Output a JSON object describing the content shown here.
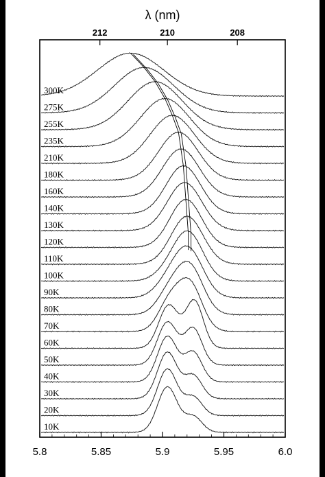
{
  "chart_data": {
    "type": "line",
    "title": "",
    "xlabel": "",
    "ylabel": "",
    "top_xlabel": "λ (nm)",
    "xlim": [
      5.8,
      6.0
    ],
    "x_ticks": [
      "5.8",
      "5.85",
      "5.9",
      "5.95",
      "6.0"
    ],
    "top_x_ticks": [
      {
        "label": "212",
        "x": 5.849
      },
      {
        "label": "210",
        "x": 5.904
      },
      {
        "label": "208",
        "x": 5.961
      }
    ],
    "grid": false,
    "legend": "none",
    "series": [
      {
        "name": "10K",
        "peak": 5.904,
        "width": 0.008,
        "shoulder": 0.35,
        "amp": 0.9
      },
      {
        "name": "20K",
        "peak": 5.904,
        "width": 0.008,
        "shoulder": 0.4,
        "amp": 0.92
      },
      {
        "name": "30K",
        "peak": 5.904,
        "width": 0.008,
        "shoulder": 0.5,
        "amp": 0.92
      },
      {
        "name": "40K",
        "peak": 5.904,
        "width": 0.008,
        "shoulder": 0.65,
        "amp": 0.9
      },
      {
        "name": "50K",
        "peak": 5.904,
        "width": 0.008,
        "shoulder": 0.85,
        "amp": 0.85
      },
      {
        "name": "60K",
        "peak": 5.905,
        "width": 0.008,
        "shoulder": 1.1,
        "amp": 0.85
      },
      {
        "name": "70K",
        "peak": 5.922,
        "width": 0.01,
        "shoulder": 0.55,
        "amp": 0.95
      },
      {
        "name": "80K",
        "peak": 5.922,
        "width": 0.011,
        "shoulder": 0.4,
        "amp": 0.95
      },
      {
        "name": "90K",
        "peak": 5.921,
        "width": 0.012,
        "shoulder": 0.25,
        "amp": 0.95
      },
      {
        "name": "100K",
        "peak": 5.921,
        "width": 0.012,
        "shoulder": 0.15,
        "amp": 0.95
      },
      {
        "name": "110K",
        "peak": 5.92,
        "width": 0.013,
        "shoulder": 0.0,
        "amp": 0.95
      },
      {
        "name": "120K",
        "peak": 5.919,
        "width": 0.013,
        "shoulder": 0.0,
        "amp": 0.95
      },
      {
        "name": "130K",
        "peak": 5.918,
        "width": 0.014,
        "shoulder": 0.0,
        "amp": 0.95
      },
      {
        "name": "140K",
        "peak": 5.917,
        "width": 0.014,
        "shoulder": 0.0,
        "amp": 0.95
      },
      {
        "name": "160K",
        "peak": 5.915,
        "width": 0.015,
        "shoulder": 0.0,
        "amp": 0.95
      },
      {
        "name": "180K",
        "peak": 5.913,
        "width": 0.016,
        "shoulder": 0.0,
        "amp": 0.95
      },
      {
        "name": "210K",
        "peak": 5.908,
        "width": 0.018,
        "shoulder": 0.0,
        "amp": 0.95
      },
      {
        "name": "235K",
        "peak": 5.902,
        "width": 0.02,
        "shoulder": 0.0,
        "amp": 0.95
      },
      {
        "name": "255K",
        "peak": 5.894,
        "width": 0.022,
        "shoulder": 0.0,
        "amp": 0.95
      },
      {
        "name": "275K",
        "peak": 5.885,
        "width": 0.024,
        "shoulder": 0.0,
        "amp": 0.9
      },
      {
        "name": "300K",
        "peak": 5.874,
        "width": 0.027,
        "shoulder": 0.0,
        "amp": 0.85
      }
    ]
  }
}
